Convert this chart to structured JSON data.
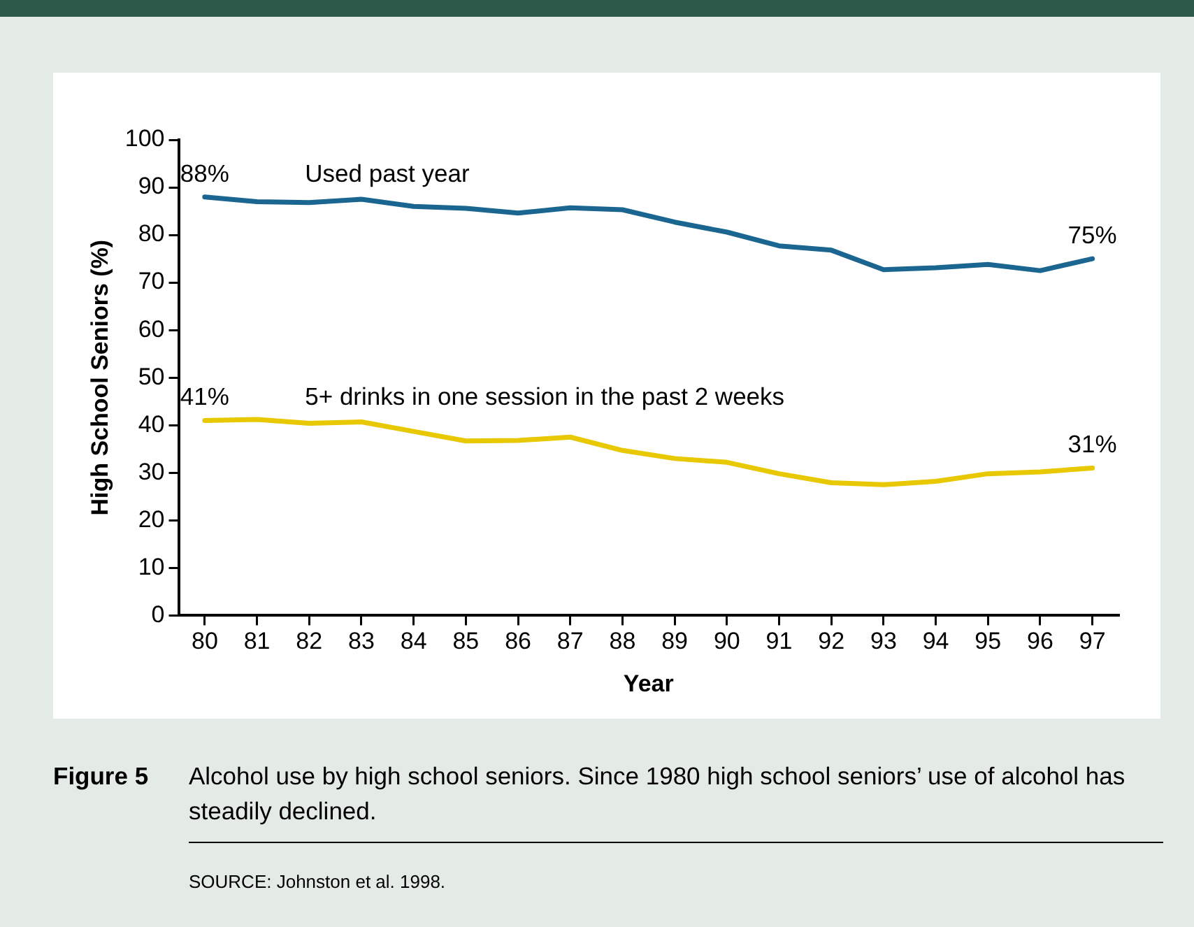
{
  "chart_data": {
    "type": "line",
    "xlabel": "Year",
    "ylabel": "High School Seniors (%)",
    "categories": [
      "80",
      "81",
      "82",
      "83",
      "84",
      "85",
      "86",
      "87",
      "88",
      "89",
      "90",
      "91",
      "92",
      "93",
      "94",
      "95",
      "96",
      "97"
    ],
    "series": [
      {
        "name": "Used past year",
        "color": "#1b6690",
        "values": [
          88,
          87,
          86.8,
          87.5,
          86,
          85.6,
          84.6,
          85.7,
          85.3,
          82.7,
          80.6,
          77.7,
          76.8,
          72.7,
          73.1,
          73.8,
          72.5,
          75
        ],
        "value_labels": [
          "88%",
          null,
          null,
          null,
          null,
          null,
          null,
          null,
          null,
          null,
          null,
          null,
          null,
          null,
          null,
          null,
          null,
          "75%"
        ]
      },
      {
        "name": "5+ drinks in one session in the past 2 weeks",
        "color": "#e8c800",
        "values": [
          41,
          41.2,
          40.4,
          40.7,
          38.7,
          36.7,
          36.8,
          37.5,
          34.7,
          33,
          32.2,
          29.8,
          27.9,
          27.5,
          28.2,
          29.8,
          30.2,
          31
        ],
        "value_labels": [
          "41%",
          null,
          null,
          null,
          null,
          null,
          null,
          null,
          null,
          null,
          null,
          null,
          null,
          null,
          null,
          null,
          null,
          "31%"
        ]
      }
    ],
    "ylim": [
      0,
      100
    ],
    "yticks": [
      0,
      10,
      20,
      30,
      40,
      50,
      60,
      70,
      80,
      90,
      100
    ],
    "grid": false,
    "legend": false,
    "marker": "none",
    "line_style": "solid",
    "annotations": [
      "Figure 5",
      "Alcohol use by high school seniors. Since 1980 high school seniors’ use of alcohol has steadily declined.",
      "SOURCE: Johnston et al. 1998."
    ]
  }
}
